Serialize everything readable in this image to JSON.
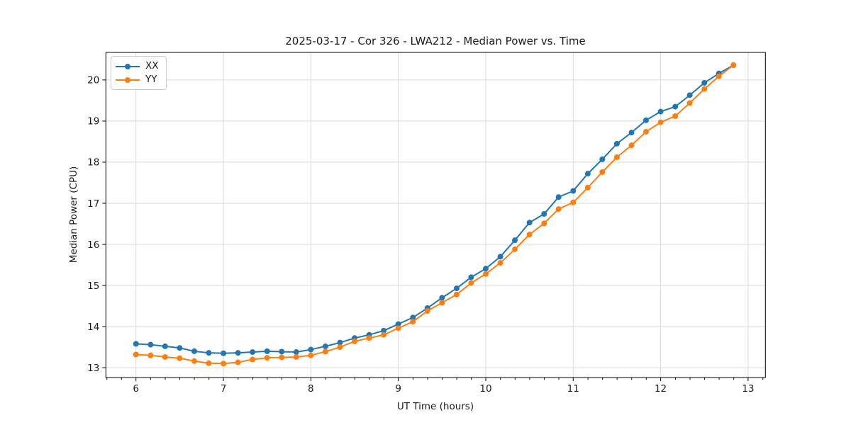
{
  "chart_data": {
    "type": "line",
    "title": "2025-03-17 - Cor 326 - LWA212 - Median Power vs. Time",
    "xlabel": "UT Time (hours)",
    "ylabel": "Median Power (CPU)",
    "xlim": [
      5.656,
      13.198
    ],
    "ylim": [
      12.76,
      20.67
    ],
    "xticks": [
      6,
      7,
      8,
      9,
      10,
      11,
      12,
      13
    ],
    "yticks": [
      13,
      14,
      15,
      16,
      17,
      18,
      19,
      20
    ],
    "x_minor_step": 0.1667,
    "grid": true,
    "grid_color": "#d9d9d9",
    "spine_color": "#000000",
    "legend_position": "upper-left",
    "x": [
      6.0,
      6.167,
      6.333,
      6.5,
      6.667,
      6.833,
      7.0,
      7.167,
      7.333,
      7.5,
      7.667,
      7.833,
      8.0,
      8.167,
      8.333,
      8.5,
      8.667,
      8.833,
      9.0,
      9.167,
      9.333,
      9.5,
      9.667,
      9.833,
      10.0,
      10.167,
      10.333,
      10.5,
      10.667,
      10.833,
      11.0,
      11.167,
      11.333,
      11.5,
      11.667,
      11.833,
      12.0,
      12.167,
      12.333,
      12.5,
      12.667,
      12.833
    ],
    "series": [
      {
        "name": "XX",
        "color": "#1f77b4",
        "values": [
          13.58,
          13.56,
          13.52,
          13.48,
          13.4,
          13.36,
          13.35,
          13.36,
          13.38,
          13.4,
          13.39,
          13.38,
          13.44,
          13.52,
          13.61,
          13.72,
          13.8,
          13.9,
          14.06,
          14.22,
          14.45,
          14.7,
          14.93,
          15.2,
          15.41,
          15.7,
          16.1,
          16.53,
          16.74,
          17.15,
          17.3,
          17.72,
          18.07,
          18.45,
          18.72,
          19.02,
          19.23,
          19.35,
          19.63,
          19.93,
          20.16,
          20.36
        ]
      },
      {
        "name": "YY",
        "color": "#ff7f0e",
        "values": [
          13.32,
          13.3,
          13.26,
          13.23,
          13.16,
          13.11,
          13.1,
          13.13,
          13.2,
          13.24,
          13.25,
          13.26,
          13.3,
          13.39,
          13.5,
          13.64,
          13.72,
          13.8,
          13.96,
          14.12,
          14.38,
          14.58,
          14.78,
          15.06,
          15.28,
          15.55,
          15.88,
          16.24,
          16.51,
          16.86,
          17.02,
          17.38,
          17.76,
          18.12,
          18.41,
          18.74,
          18.97,
          19.12,
          19.44,
          19.78,
          20.09,
          20.36
        ]
      }
    ]
  }
}
